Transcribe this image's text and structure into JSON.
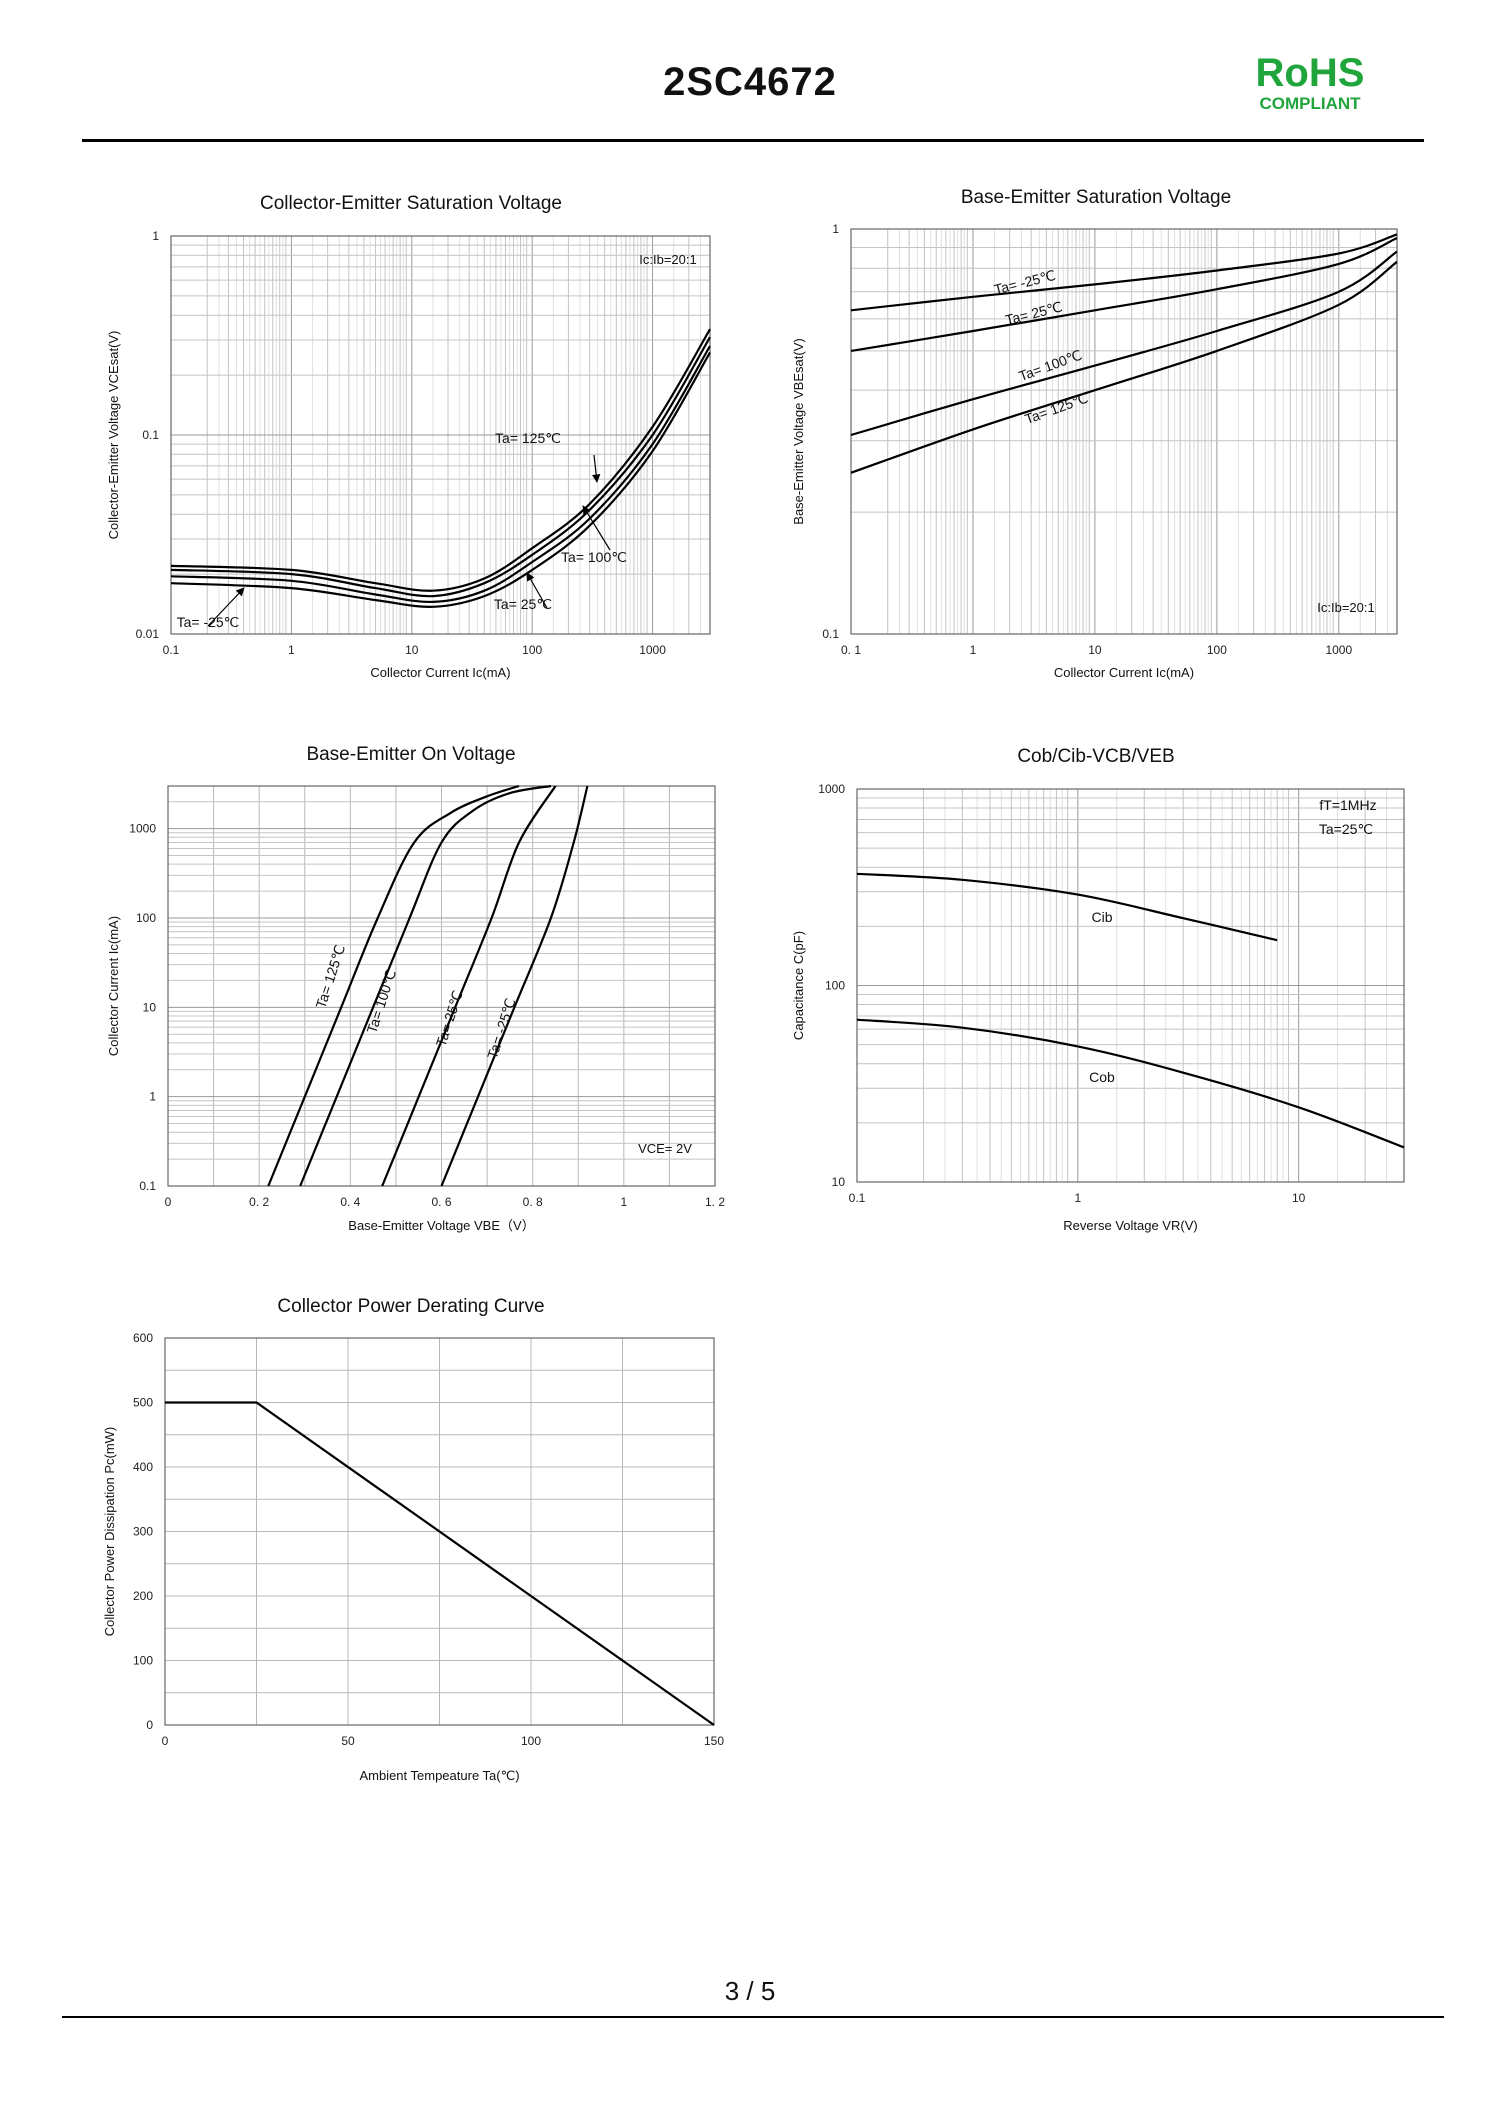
{
  "header": {
    "part_number": "2SC4672",
    "rohs_label": "RoHS",
    "rohs_sub": "COMPLIANT"
  },
  "footer": {
    "page": "3 / 5"
  },
  "chart_data": [
    {
      "id": "vcesat",
      "type": "line",
      "title": "Collector-Emitter Saturation Voltage",
      "xlabel": "Collector Current   Ic(mA)",
      "ylabel": "Collector-Emitter Voltage   VCEsat(V)",
      "xscale": "log",
      "yscale": "log",
      "xlim": [
        0.1,
        3000
      ],
      "ylim": [
        0.01,
        1
      ],
      "xticks": [
        "0.1",
        "1",
        "10",
        "100",
        "1000"
      ],
      "yticks": [
        "0.01",
        "0.1",
        "1"
      ],
      "note": "Ic:Ib=20:1",
      "series": [
        {
          "name": "Ta= 125℃",
          "x": [
            0.1,
            1,
            5,
            15,
            40,
            100,
            300,
            1000,
            3000
          ],
          "y": [
            0.022,
            0.021,
            0.018,
            0.0165,
            0.019,
            0.027,
            0.045,
            0.11,
            0.34
          ]
        },
        {
          "name": "Ta= 100℃",
          "x": [
            0.1,
            1,
            5,
            15,
            40,
            100,
            300,
            1000,
            3000
          ],
          "y": [
            0.021,
            0.02,
            0.017,
            0.0155,
            0.018,
            0.025,
            0.042,
            0.1,
            0.31
          ]
        },
        {
          "name": "Ta= 25℃",
          "x": [
            0.1,
            1,
            5,
            15,
            40,
            100,
            300,
            1000,
            3000
          ],
          "y": [
            0.0195,
            0.0185,
            0.0158,
            0.0145,
            0.0165,
            0.023,
            0.038,
            0.09,
            0.28
          ]
        },
        {
          "name": "Ta= -25℃",
          "x": [
            0.1,
            1,
            5,
            15,
            40,
            100,
            300,
            1000,
            3000
          ],
          "y": [
            0.018,
            0.017,
            0.0148,
            0.0137,
            0.0155,
            0.021,
            0.035,
            0.083,
            0.26
          ]
        }
      ]
    },
    {
      "id": "vbesat",
      "type": "line",
      "title": "Base-Emitter Saturation Voltage",
      "xlabel": "Collector Current   Ic(mA)",
      "ylabel": "Base-Emitter Voltage   VBEsat(V)",
      "xscale": "log",
      "yscale": "log",
      "xlim": [
        0.1,
        3000
      ],
      "ylim": [
        0.1,
        1
      ],
      "xticks": [
        "0. 1",
        "1",
        "10",
        "100",
        "1000"
      ],
      "yticks": [
        "0.1",
        "1"
      ],
      "note": "Ic:Ib=20:1",
      "series": [
        {
          "name": "Ta= -25℃",
          "x": [
            0.1,
            1,
            10,
            100,
            1000,
            3000
          ],
          "y": [
            0.63,
            0.68,
            0.73,
            0.79,
            0.87,
            0.97
          ]
        },
        {
          "name": "Ta= 25℃",
          "x": [
            0.1,
            1,
            10,
            100,
            1000,
            3000
          ],
          "y": [
            0.5,
            0.56,
            0.63,
            0.71,
            0.82,
            0.95
          ]
        },
        {
          "name": "Ta= 100℃",
          "x": [
            0.1,
            1,
            10,
            100,
            1000,
            3000
          ],
          "y": [
            0.31,
            0.38,
            0.46,
            0.56,
            0.7,
            0.88
          ]
        },
        {
          "name": "Ta= 125℃",
          "x": [
            0.1,
            1,
            10,
            100,
            1000,
            3000
          ],
          "y": [
            0.25,
            0.32,
            0.4,
            0.5,
            0.65,
            0.83
          ]
        }
      ]
    },
    {
      "id": "vbeon",
      "type": "line",
      "title": "Base-Emitter On Voltage",
      "xlabel": "Base-Emitter Voltage   VBE（V）",
      "ylabel": "Collector Current   Ic(mA)",
      "xscale": "linear",
      "yscale": "log",
      "xlim": [
        0,
        1.2
      ],
      "ylim": [
        0.1,
        3000
      ],
      "xticks": [
        "0",
        "0. 2",
        "0. 4",
        "0. 6",
        "0. 8",
        "1",
        "1. 2"
      ],
      "yticks": [
        "0.1",
        "1",
        "10",
        "100",
        "1000"
      ],
      "note": "VCE= 2V",
      "series": [
        {
          "name": "Ta= 125℃",
          "x": [
            0.22,
            0.3,
            0.38,
            0.46,
            0.54,
            0.62,
            0.7,
            0.77
          ],
          "y": [
            0.1,
            1,
            10,
            100,
            700,
            1500,
            2300,
            3000
          ]
        },
        {
          "name": "Ta= 100℃",
          "x": [
            0.29,
            0.37,
            0.45,
            0.53,
            0.6,
            0.67,
            0.75,
            0.84
          ],
          "y": [
            0.1,
            1,
            10,
            100,
            700,
            1600,
            2500,
            3000
          ]
        },
        {
          "name": "Ta= 25℃",
          "x": [
            0.47,
            0.55,
            0.63,
            0.71,
            0.77,
            0.85
          ],
          "y": [
            0.1,
            1,
            10,
            100,
            700,
            3000
          ]
        },
        {
          "name": "Ta= -25℃",
          "x": [
            0.6,
            0.68,
            0.76,
            0.84,
            0.89,
            0.92
          ],
          "y": [
            0.1,
            1,
            10,
            100,
            700,
            3000
          ]
        }
      ]
    },
    {
      "id": "cap",
      "type": "line",
      "title": "Cob/Cib-VCB/VEB",
      "xlabel": "Reverse Voltage   VR(V)",
      "ylabel": "Capacitance   C(pF)",
      "xscale": "log",
      "yscale": "log",
      "xlim": [
        0.1,
        30
      ],
      "ylim": [
        10,
        1000
      ],
      "xticks": [
        "0.1",
        "1",
        "10"
      ],
      "yticks": [
        "10",
        "100",
        "1000"
      ],
      "notes": [
        "fT=1MHz",
        "Ta=25℃"
      ],
      "series": [
        {
          "name": "Cib",
          "x": [
            0.1,
            0.3,
            1,
            3,
            8
          ],
          "y": [
            370,
            345,
            290,
            220,
            170
          ]
        },
        {
          "name": "Cob",
          "x": [
            0.1,
            0.3,
            1,
            3,
            10,
            30
          ],
          "y": [
            67,
            61,
            49,
            36,
            24,
            15
          ]
        }
      ]
    },
    {
      "id": "derating",
      "type": "line",
      "title": "Collector Power Derating Curve",
      "xlabel": "Ambient Tempeature Ta(℃)",
      "ylabel": "Collector Power Dissipation   Pc(mW)",
      "xscale": "linear",
      "yscale": "linear",
      "xlim": [
        0,
        150
      ],
      "ylim": [
        0,
        600
      ],
      "xticks": [
        "0",
        "50",
        "100",
        "150"
      ],
      "yticks": [
        "0",
        "100",
        "200",
        "300",
        "400",
        "500",
        "600"
      ],
      "series": [
        {
          "name": "Pc",
          "x": [
            0,
            25,
            150
          ],
          "y": [
            500,
            500,
            0
          ]
        }
      ]
    }
  ]
}
